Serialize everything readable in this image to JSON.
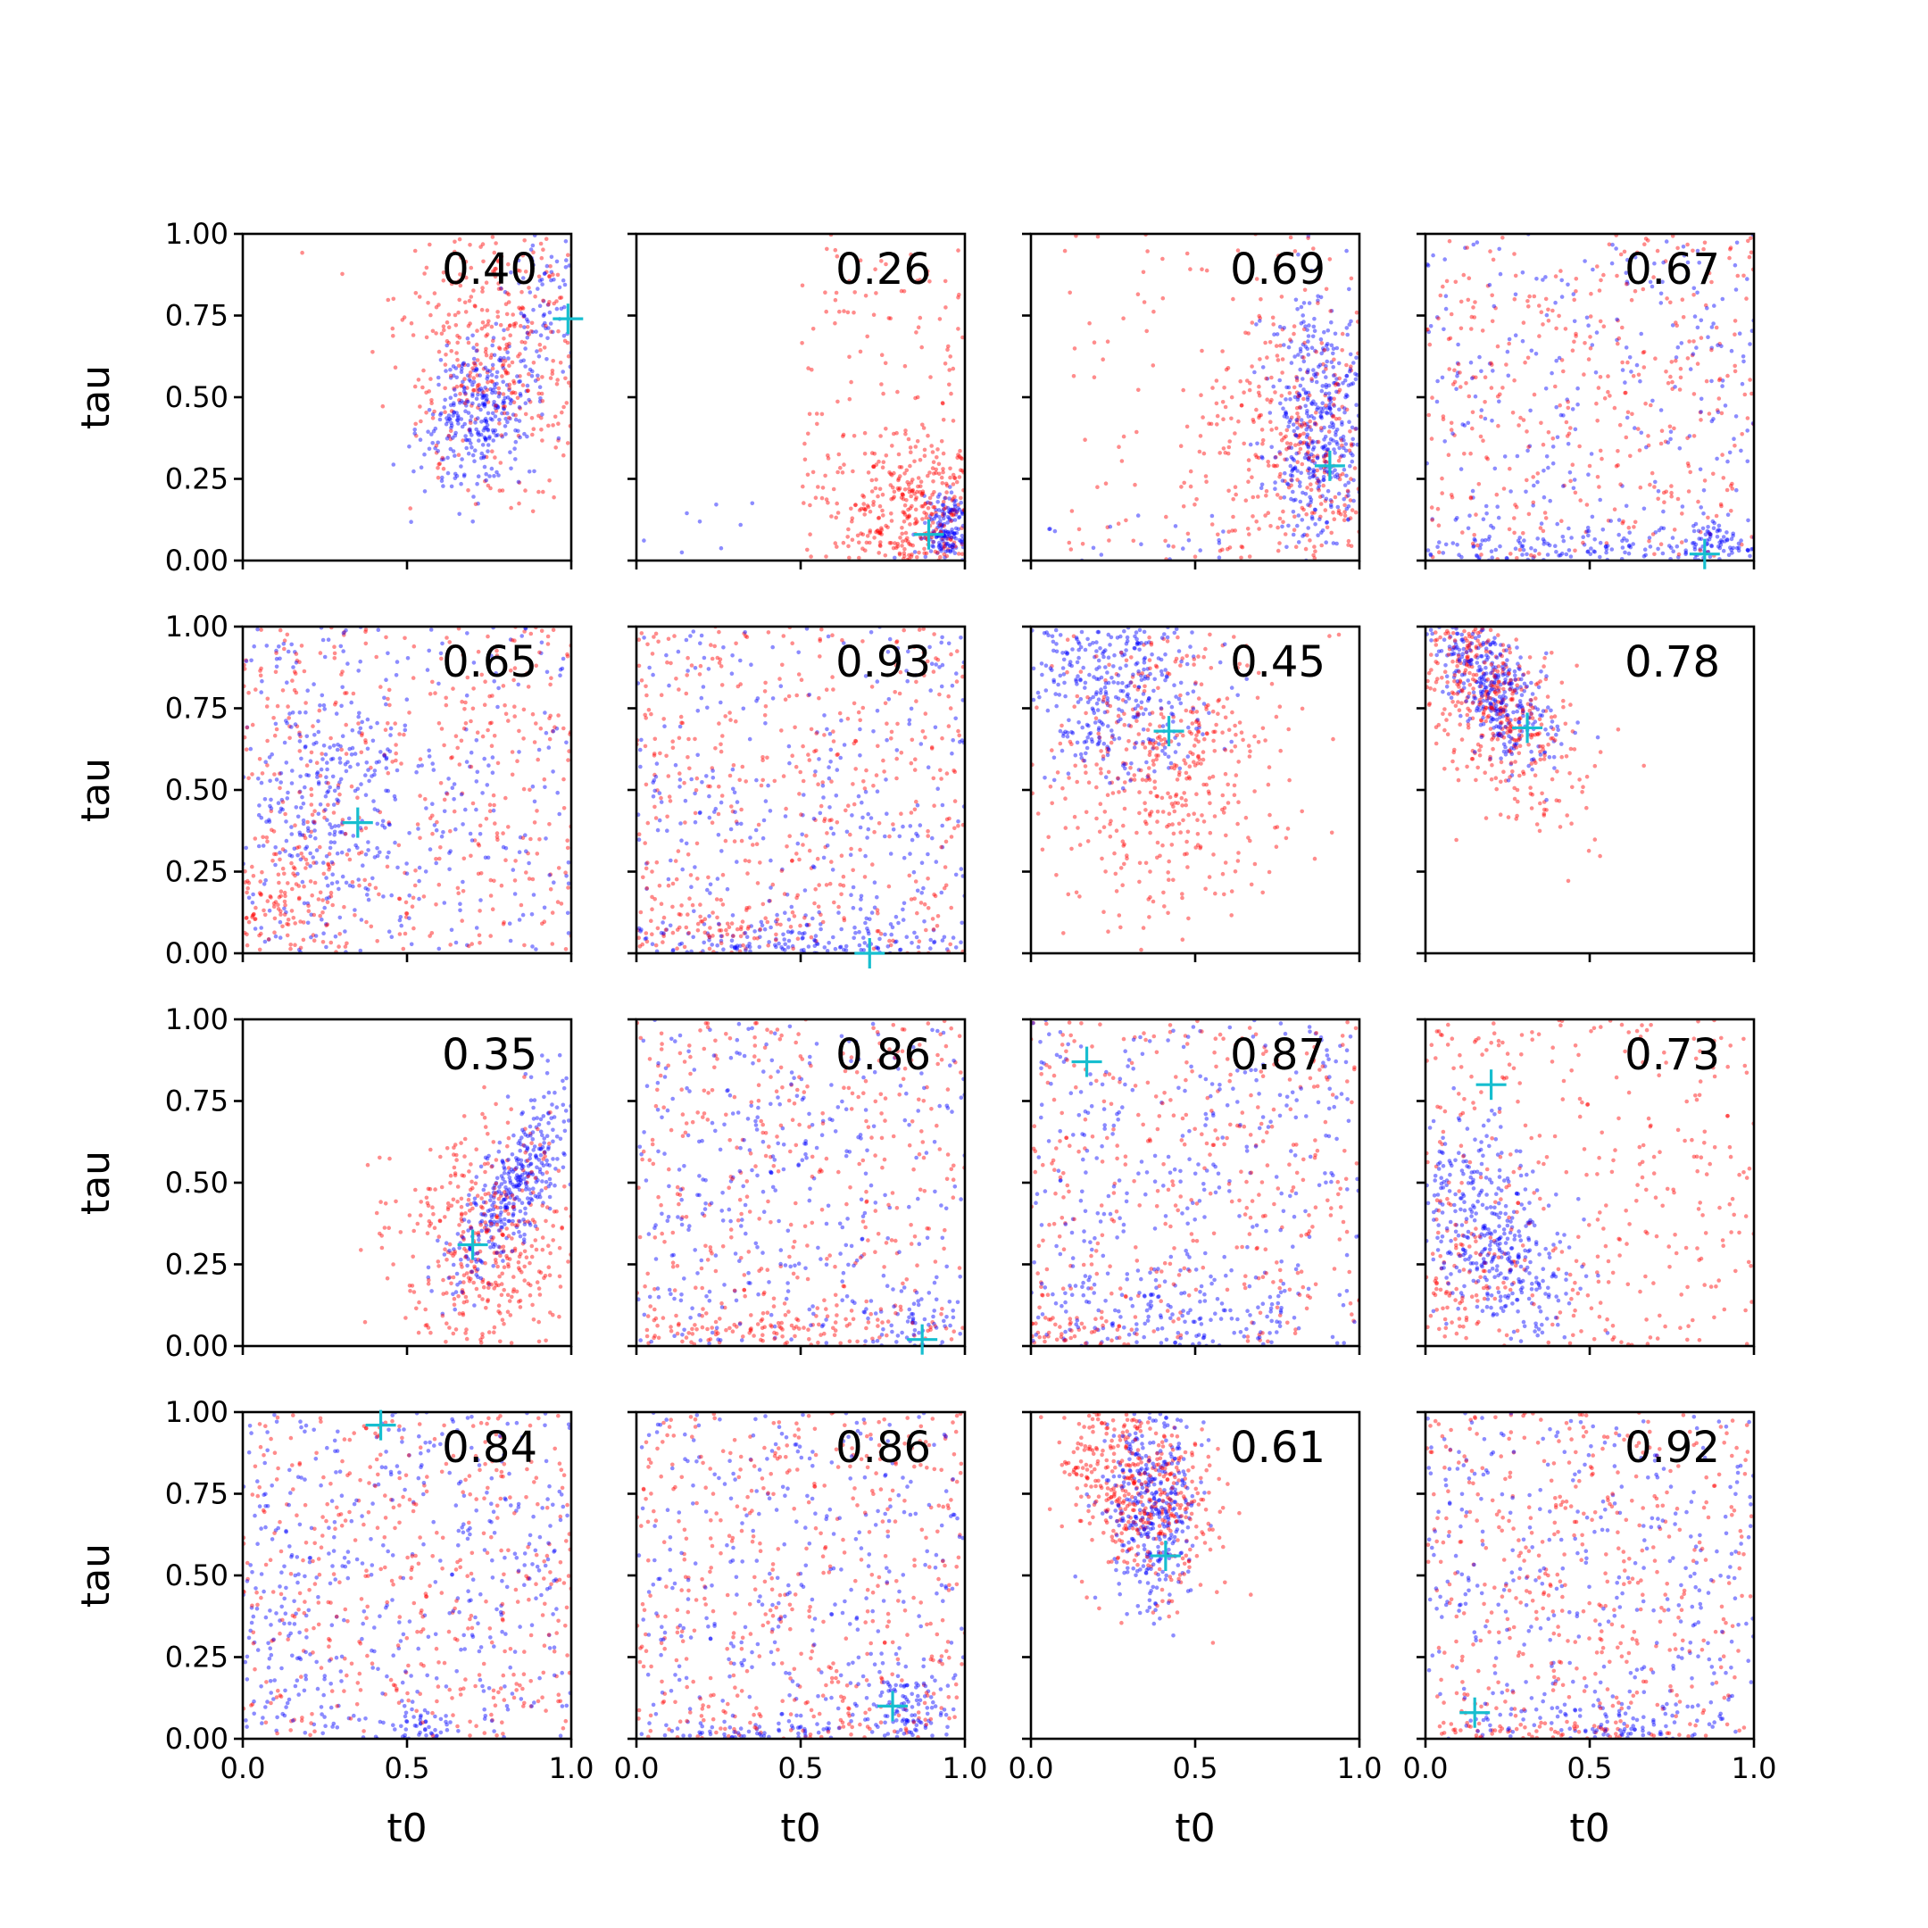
{
  "chart_data": {
    "type": "scatter",
    "grid": false,
    "layout": {
      "rows": 4,
      "cols": 4,
      "sharex": true,
      "sharey": true
    },
    "xlabel": "t0",
    "ylabel": "tau",
    "xlim": [
      0.0,
      1.0
    ],
    "ylim": [
      0.0,
      1.0
    ],
    "xticks": [
      0.0,
      0.5,
      1.0
    ],
    "xtick_labels": [
      "0.0",
      "0.5",
      "1.0"
    ],
    "yticks": [
      0.0,
      0.25,
      0.5,
      0.75,
      1.0
    ],
    "ytick_labels": [
      "0.00",
      "0.25",
      "0.50",
      "0.75",
      "1.00"
    ],
    "series_colors": {
      "red": "#ff0000",
      "blue": "#0000ff",
      "marker": "#17becf"
    },
    "panels": [
      {
        "label": "0.40",
        "marker": [
          0.99,
          0.74
        ],
        "clusters": [
          {
            "color": "red",
            "n": 420,
            "shape": "gauss",
            "mx": 0.78,
            "my": 0.62,
            "sx": 0.15,
            "sy": 0.22
          },
          {
            "color": "blue",
            "n": 330,
            "shape": "gauss",
            "mx": 0.72,
            "my": 0.45,
            "sx": 0.09,
            "sy": 0.12,
            "corr": 0.4
          },
          {
            "color": "blue",
            "n": 70,
            "shape": "gauss",
            "mx": 0.92,
            "my": 0.8,
            "sx": 0.06,
            "sy": 0.12
          }
        ]
      },
      {
        "label": "0.26",
        "marker": [
          0.89,
          0.08
        ],
        "clusters": [
          {
            "color": "red",
            "n": 380,
            "shape": "gauss",
            "mx": 0.86,
            "my": 0.14,
            "sx": 0.13,
            "sy": 0.12
          },
          {
            "color": "red",
            "n": 140,
            "shape": "uniform",
            "x": [
              0.5,
              1.0
            ],
            "y": [
              0.0,
              1.0
            ]
          },
          {
            "color": "blue",
            "n": 180,
            "shape": "gauss",
            "mx": 0.95,
            "my": 0.09,
            "sx": 0.04,
            "sy": 0.06
          },
          {
            "color": "blue",
            "n": 8,
            "shape": "uniform",
            "x": [
              0.02,
              0.5
            ],
            "y": [
              0.02,
              0.25
            ]
          }
        ]
      },
      {
        "label": "0.69",
        "marker": [
          0.91,
          0.29
        ],
        "clusters": [
          {
            "color": "blue",
            "n": 430,
            "shape": "gauss",
            "mx": 0.88,
            "my": 0.42,
            "sx": 0.08,
            "sy": 0.2
          },
          {
            "color": "red",
            "n": 320,
            "shape": "gauss",
            "mx": 0.82,
            "my": 0.35,
            "sx": 0.14,
            "sy": 0.24
          },
          {
            "color": "red",
            "n": 130,
            "shape": "uniform",
            "x": [
              0.1,
              1.0
            ],
            "y": [
              0.0,
              1.0
            ]
          },
          {
            "color": "blue",
            "n": 20,
            "shape": "uniform",
            "x": [
              0.05,
              0.6
            ],
            "y": [
              0.0,
              0.15
            ]
          }
        ]
      },
      {
        "label": "0.67",
        "marker": [
          0.85,
          0.02
        ],
        "clusters": [
          {
            "color": "red",
            "n": 380,
            "shape": "uniform",
            "x": [
              0.0,
              1.0
            ],
            "y": [
              0.0,
              1.0
            ]
          },
          {
            "color": "blue",
            "n": 260,
            "shape": "uniform",
            "x": [
              0.0,
              1.0
            ],
            "y": [
              0.0,
              1.0
            ]
          },
          {
            "color": "blue",
            "n": 170,
            "shape": "gauss",
            "mx": 0.5,
            "my": 0.03,
            "sx": 0.35,
            "sy": 0.04
          },
          {
            "color": "blue",
            "n": 70,
            "shape": "gauss",
            "mx": 0.88,
            "my": 0.05,
            "sx": 0.05,
            "sy": 0.05
          }
        ]
      },
      {
        "label": "0.65",
        "marker": [
          0.35,
          0.4
        ],
        "clusters": [
          {
            "color": "red",
            "n": 420,
            "shape": "uniform",
            "x": [
              0.0,
              1.0
            ],
            "y": [
              0.0,
              1.0
            ]
          },
          {
            "color": "blue",
            "n": 260,
            "shape": "uniform",
            "x": [
              0.0,
              1.0
            ],
            "y": [
              0.0,
              1.0
            ]
          },
          {
            "color": "blue",
            "n": 240,
            "shape": "gauss",
            "mx": 0.25,
            "my": 0.45,
            "sx": 0.12,
            "sy": 0.25
          },
          {
            "color": "red",
            "n": 100,
            "shape": "gauss",
            "mx": 0.12,
            "my": 0.15,
            "sx": 0.1,
            "sy": 0.1
          }
        ]
      },
      {
        "label": "0.93",
        "marker": [
          0.71,
          0.0
        ],
        "clusters": [
          {
            "color": "red",
            "n": 420,
            "shape": "uniform",
            "x": [
              0.0,
              1.0
            ],
            "y": [
              0.0,
              1.0
            ]
          },
          {
            "color": "blue",
            "n": 300,
            "shape": "uniform",
            "x": [
              0.0,
              1.0
            ],
            "y": [
              0.0,
              1.0
            ]
          },
          {
            "color": "blue",
            "n": 200,
            "shape": "gauss",
            "mx": 0.45,
            "my": 0.03,
            "sx": 0.32,
            "sy": 0.04
          },
          {
            "color": "red",
            "n": 80,
            "shape": "gauss",
            "mx": 0.2,
            "my": 0.05,
            "sx": 0.15,
            "sy": 0.05
          }
        ]
      },
      {
        "label": "0.45",
        "marker": [
          0.42,
          0.68
        ],
        "clusters": [
          {
            "color": "blue",
            "n": 420,
            "shape": "gauss",
            "mx": 0.25,
            "my": 0.85,
            "sx": 0.15,
            "sy": 0.15
          },
          {
            "color": "red",
            "n": 470,
            "shape": "gauss",
            "mx": 0.4,
            "my": 0.58,
            "sx": 0.2,
            "sy": 0.22
          }
        ]
      },
      {
        "label": "0.78",
        "marker": [
          0.31,
          0.69
        ],
        "clusters": [
          {
            "color": "blue",
            "n": 380,
            "shape": "gauss",
            "mx": 0.2,
            "my": 0.82,
            "sx": 0.09,
            "sy": 0.12,
            "corr": -0.6
          },
          {
            "color": "red",
            "n": 420,
            "shape": "gauss",
            "mx": 0.18,
            "my": 0.8,
            "sx": 0.12,
            "sy": 0.14,
            "corr": -0.5
          },
          {
            "color": "red",
            "n": 60,
            "shape": "gauss",
            "mx": 0.35,
            "my": 0.55,
            "sx": 0.15,
            "sy": 0.12
          }
        ]
      },
      {
        "label": "0.35",
        "marker": [
          0.7,
          0.31
        ],
        "clusters": [
          {
            "color": "red",
            "n": 440,
            "shape": "gauss",
            "mx": 0.75,
            "my": 0.3,
            "sx": 0.14,
            "sy": 0.18
          },
          {
            "color": "blue",
            "n": 380,
            "shape": "gauss",
            "mx": 0.82,
            "my": 0.48,
            "sx": 0.1,
            "sy": 0.16,
            "corr": 0.8
          }
        ]
      },
      {
        "label": "0.86",
        "marker": [
          0.87,
          0.02
        ],
        "clusters": [
          {
            "color": "red",
            "n": 360,
            "shape": "uniform",
            "x": [
              0.0,
              1.0
            ],
            "y": [
              0.0,
              1.0
            ]
          },
          {
            "color": "blue",
            "n": 350,
            "shape": "uniform",
            "x": [
              0.0,
              1.0
            ],
            "y": [
              0.0,
              1.0
            ]
          },
          {
            "color": "red",
            "n": 140,
            "shape": "gauss",
            "mx": 0.4,
            "my": 0.04,
            "sx": 0.3,
            "sy": 0.05
          },
          {
            "color": "blue",
            "n": 60,
            "shape": "gauss",
            "mx": 0.85,
            "my": 0.05,
            "sx": 0.1,
            "sy": 0.05
          }
        ]
      },
      {
        "label": "0.87",
        "marker": [
          0.17,
          0.87
        ],
        "clusters": [
          {
            "color": "red",
            "n": 360,
            "shape": "uniform",
            "x": [
              0.0,
              1.0
            ],
            "y": [
              0.0,
              1.0
            ]
          },
          {
            "color": "blue",
            "n": 330,
            "shape": "uniform",
            "x": [
              0.0,
              1.0
            ],
            "y": [
              0.0,
              1.0
            ]
          },
          {
            "color": "blue",
            "n": 170,
            "shape": "gauss",
            "mx": 0.4,
            "my": 0.06,
            "sx": 0.25,
            "sy": 0.08
          },
          {
            "color": "red",
            "n": 60,
            "shape": "gauss",
            "mx": 0.1,
            "my": 0.04,
            "sx": 0.1,
            "sy": 0.04
          }
        ]
      },
      {
        "label": "0.73",
        "marker": [
          0.2,
          0.8
        ],
        "clusters": [
          {
            "color": "red",
            "n": 330,
            "shape": "uniform",
            "x": [
              0.0,
              1.0
            ],
            "y": [
              0.0,
              1.0
            ]
          },
          {
            "color": "blue",
            "n": 420,
            "shape": "gauss",
            "mx": 0.2,
            "my": 0.35,
            "sx": 0.12,
            "sy": 0.18,
            "corr": -0.5
          },
          {
            "color": "red",
            "n": 110,
            "shape": "gauss",
            "mx": 0.1,
            "my": 0.2,
            "sx": 0.1,
            "sy": 0.15
          }
        ]
      },
      {
        "label": "0.84",
        "marker": [
          0.42,
          0.96
        ],
        "clusters": [
          {
            "color": "red",
            "n": 420,
            "shape": "uniform",
            "x": [
              0.0,
              1.0
            ],
            "y": [
              0.0,
              1.0
            ]
          },
          {
            "color": "blue",
            "n": 380,
            "shape": "uniform",
            "x": [
              0.0,
              1.0
            ],
            "y": [
              0.0,
              1.0
            ]
          },
          {
            "color": "blue",
            "n": 80,
            "shape": "gauss",
            "mx": 0.1,
            "my": 0.35,
            "sx": 0.08,
            "sy": 0.25
          },
          {
            "color": "blue",
            "n": 40,
            "shape": "gauss",
            "mx": 0.55,
            "my": 0.03,
            "sx": 0.04,
            "sy": 0.03
          }
        ]
      },
      {
        "label": "0.86",
        "marker": [
          0.78,
          0.1
        ],
        "clusters": [
          {
            "color": "red",
            "n": 420,
            "shape": "uniform",
            "x": [
              0.0,
              1.0
            ],
            "y": [
              0.0,
              1.0
            ]
          },
          {
            "color": "blue",
            "n": 330,
            "shape": "uniform",
            "x": [
              0.0,
              1.0
            ],
            "y": [
              0.0,
              1.0
            ]
          },
          {
            "color": "blue",
            "n": 100,
            "shape": "gauss",
            "mx": 0.82,
            "my": 0.1,
            "sx": 0.06,
            "sy": 0.07
          },
          {
            "color": "blue",
            "n": 60,
            "shape": "gauss",
            "mx": 0.4,
            "my": 0.02,
            "sx": 0.15,
            "sy": 0.02
          },
          {
            "color": "red",
            "n": 60,
            "shape": "gauss",
            "mx": 0.5,
            "my": 0.05,
            "sx": 0.3,
            "sy": 0.05
          }
        ]
      },
      {
        "label": "0.61",
        "marker": [
          0.41,
          0.56
        ],
        "clusters": [
          {
            "color": "red",
            "n": 480,
            "shape": "gauss",
            "mx": 0.33,
            "my": 0.78,
            "sx": 0.12,
            "sy": 0.16,
            "corr": -0.3
          },
          {
            "color": "blue",
            "n": 380,
            "shape": "gauss",
            "mx": 0.38,
            "my": 0.72,
            "sx": 0.07,
            "sy": 0.16
          }
        ]
      },
      {
        "label": "0.92",
        "marker": [
          0.15,
          0.08
        ],
        "clusters": [
          {
            "color": "red",
            "n": 430,
            "shape": "uniform",
            "x": [
              0.0,
              1.0
            ],
            "y": [
              0.0,
              1.0
            ]
          },
          {
            "color": "blue",
            "n": 340,
            "shape": "uniform",
            "x": [
              0.0,
              1.0
            ],
            "y": [
              0.0,
              1.0
            ]
          },
          {
            "color": "blue",
            "n": 120,
            "shape": "gauss",
            "mx": 0.6,
            "my": 0.04,
            "sx": 0.3,
            "sy": 0.04
          },
          {
            "color": "red",
            "n": 60,
            "shape": "gauss",
            "mx": 0.3,
            "my": 0.02,
            "sx": 0.2,
            "sy": 0.02
          }
        ]
      }
    ]
  }
}
